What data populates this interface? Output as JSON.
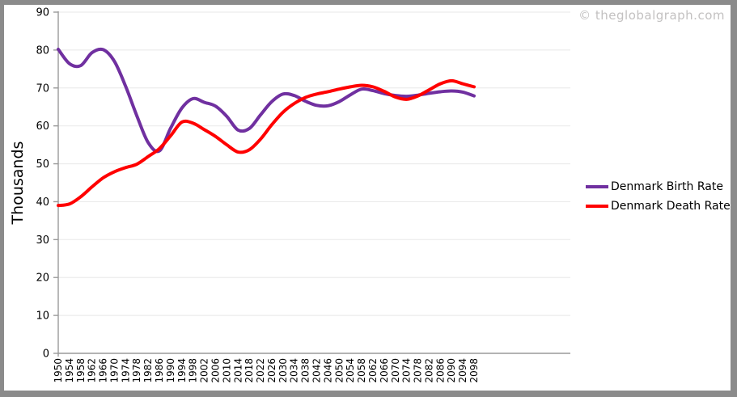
{
  "watermark": "© theglobalgraph.com",
  "legend": [
    {
      "label": "Denmark Birth Rate",
      "color": "#7030A0"
    },
    {
      "label": "Denmark Death Rate",
      "color": "#FF0000"
    }
  ],
  "colors": {
    "axis": "#9a9a9a",
    "grid": "#ececec",
    "tick_text": "#000000",
    "watermark_text": "#c3c1c1",
    "frame": "#8b8b8b",
    "background": "#ffffff"
  },
  "chart_data": {
    "type": "line",
    "title": "",
    "xlabel": "",
    "ylabel": "Thousands",
    "ylim": [
      0,
      90
    ],
    "ytick_interval": 10,
    "grid": true,
    "legend_position": "right",
    "x": [
      1950,
      1954,
      1958,
      1962,
      1966,
      1970,
      1974,
      1978,
      1982,
      1986,
      1990,
      1994,
      1998,
      2002,
      2006,
      2010,
      2014,
      2018,
      2022,
      2026,
      2030,
      2034,
      2038,
      2042,
      2046,
      2050,
      2054,
      2058,
      2062,
      2066,
      2070,
      2074,
      2078,
      2082,
      2086,
      2090,
      2094,
      2098
    ],
    "series": [
      {
        "name": "Denmark Birth Rate",
        "color": "#7030A0",
        "values": [
          80.2,
          76.4,
          75.9,
          79.3,
          80.1,
          77.0,
          70.4,
          62.6,
          55.6,
          53.4,
          59.4,
          64.7,
          67.2,
          66.2,
          65.2,
          62.5,
          58.9,
          59.3,
          62.9,
          66.4,
          68.4,
          68.0,
          66.5,
          65.4,
          65.3,
          66.4,
          68.2,
          69.7,
          69.3,
          68.5,
          68.0,
          67.8,
          68.1,
          68.6,
          69.0,
          69.2,
          68.9,
          67.9
        ]
      },
      {
        "name": "Denmark Death Rate",
        "color": "#FF0000",
        "values": [
          39.0,
          39.4,
          41.3,
          43.9,
          46.3,
          47.9,
          49.0,
          49.9,
          51.9,
          54.0,
          57.4,
          61.0,
          60.7,
          59.0,
          57.2,
          55.0,
          53.1,
          53.7,
          56.5,
          60.3,
          63.6,
          65.9,
          67.5,
          68.4,
          69.0,
          69.7,
          70.3,
          70.7,
          70.3,
          69.1,
          67.6,
          67.0,
          67.9,
          69.5,
          71.1,
          71.9,
          71.1,
          70.3
        ]
      }
    ]
  }
}
